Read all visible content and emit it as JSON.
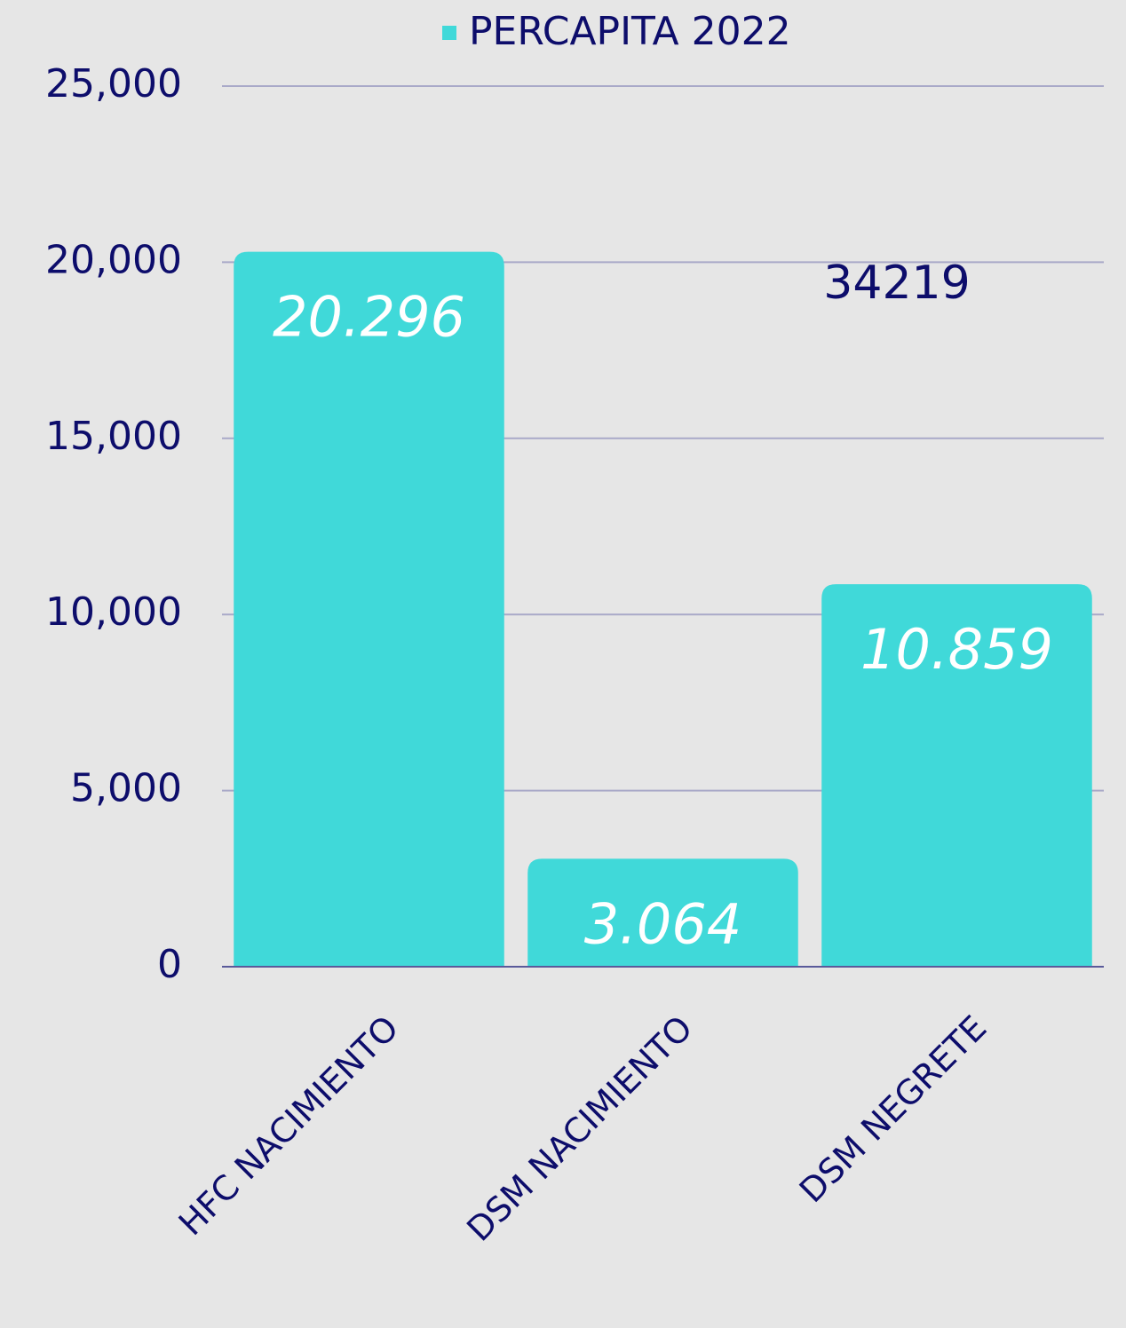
{
  "chart_data": {
    "type": "bar",
    "categories": [
      "HFC NACIMIENTO",
      "DSM NACIMIENTO",
      "DSM NEGRETE"
    ],
    "series": [
      {
        "name": "PERCAPITA 2022",
        "color": "#40d9d9",
        "values": [
          20296,
          3064,
          10859
        ],
        "value_labels": [
          "20.296",
          "3.064",
          "10.859"
        ]
      }
    ],
    "annotation": "34219",
    "ylim": [
      0,
      25000
    ],
    "yticks": [
      0,
      {
        "value": 5000,
        "label": "5,000"
      },
      {
        "value": 10000,
        "label": "10,000"
      },
      {
        "value": 15000,
        "label": "15,000"
      },
      {
        "value": 20000,
        "label": "20,000"
      },
      {
        "value": 25000,
        "label": "25,000"
      }
    ],
    "grid": true
  }
}
